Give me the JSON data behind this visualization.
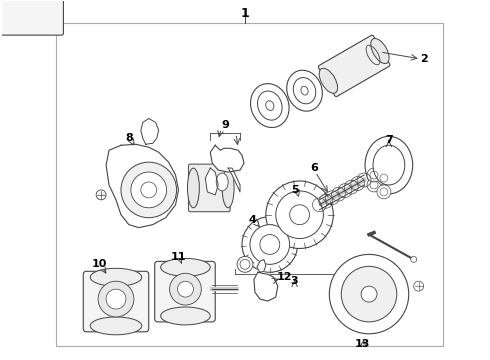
{
  "bg_color": "#ffffff",
  "line_color": "#444444",
  "text_color": "#000000",
  "figsize": [
    4.9,
    3.6
  ],
  "dpi": 100
}
